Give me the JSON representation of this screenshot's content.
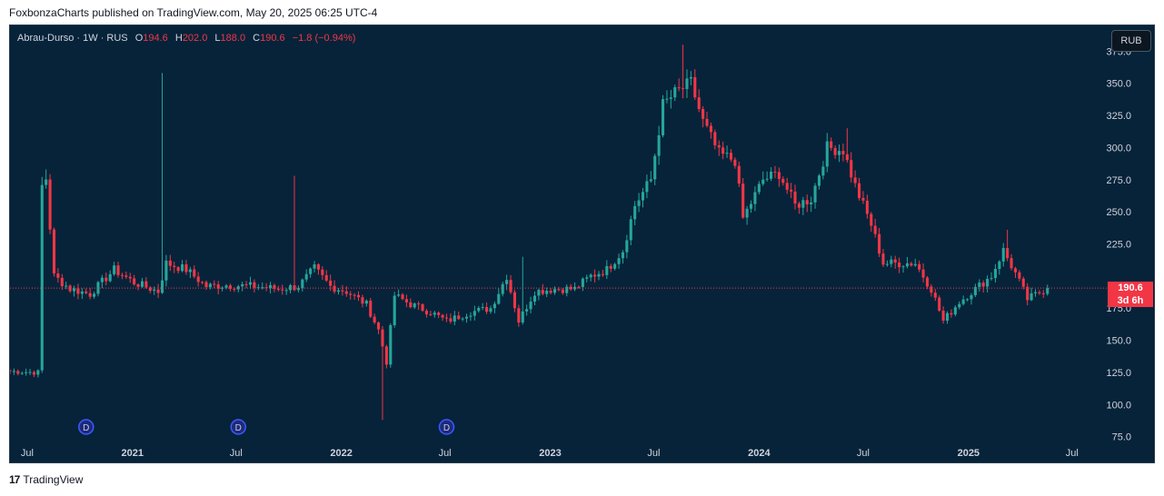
{
  "header": {
    "text": "FoxbonzaCharts published on TradingView.com, May 20, 2025 06:25 UTC-4"
  },
  "legend": {
    "symbol": "Abrau-Durso · 1W · RUS",
    "o_label": "O",
    "o_value": "194.6",
    "h_label": "H",
    "h_value": "202.0",
    "l_label": "L",
    "l_value": "188.0",
    "c_label": "C",
    "c_value": "190.6",
    "change": "−1.8 (−0.94%)"
  },
  "currency_button": "RUB",
  "price_tag": {
    "price": "190.6",
    "countdown": "3d 6h"
  },
  "dividend_marker_label": "D",
  "footer": {
    "logo": "17",
    "brand": "TradingView"
  },
  "colors": {
    "background": "#06233a",
    "up": "#26a69a",
    "down": "#f23645",
    "text": "#d1d4dc"
  },
  "chart_data": {
    "type": "candlestick",
    "symbol": "Abrau-Durso",
    "interval": "1W",
    "currency": "RUB",
    "last_price": 190.6,
    "y_ticks": [
      75,
      100,
      125,
      150,
      175,
      200,
      225,
      250,
      275,
      300,
      325,
      350,
      375
    ],
    "y_tick_labels": [
      "75.0",
      "100.0",
      "125.0",
      "150.0",
      "175.0",
      "200.0",
      "225.0",
      "250.0",
      "275.0",
      "300.0",
      "325.0",
      "350.0",
      "375.0"
    ],
    "ylim": [
      55,
      395
    ],
    "xlim": [
      "2020-06-01",
      "2025-08-10"
    ],
    "x_ticks": [
      {
        "date": "2020-07-01",
        "label": "Jul",
        "bold": false
      },
      {
        "date": "2021-01-01",
        "label": "2021",
        "bold": true
      },
      {
        "date": "2021-07-01",
        "label": "Jul",
        "bold": false
      },
      {
        "date": "2022-01-01",
        "label": "2022",
        "bold": true
      },
      {
        "date": "2022-07-01",
        "label": "Jul",
        "bold": false
      },
      {
        "date": "2023-01-01",
        "label": "2023",
        "bold": true
      },
      {
        "date": "2023-07-01",
        "label": "Jul",
        "bold": false
      },
      {
        "date": "2024-01-01",
        "label": "2024",
        "bold": true
      },
      {
        "date": "2024-07-01",
        "label": "Jul",
        "bold": false
      },
      {
        "date": "2025-01-01",
        "label": "2025",
        "bold": true
      },
      {
        "date": "2025-07-01",
        "label": "Jul",
        "bold": false
      }
    ],
    "dividends": [
      "2020-10-12",
      "2021-07-05",
      "2022-07-04"
    ],
    "anchors": [
      [
        "2020-06-01",
        126
      ],
      [
        "2020-07-20",
        125
      ],
      [
        "2020-07-27",
        270
      ],
      [
        "2020-08-03",
        276
      ],
      [
        "2020-08-17",
        200
      ],
      [
        "2020-09-14",
        190
      ],
      [
        "2020-10-19",
        186
      ],
      [
        "2020-11-30",
        205
      ],
      [
        "2021-01-04",
        195
      ],
      [
        "2021-02-15",
        188
      ],
      [
        "2021-03-01",
        210
      ],
      [
        "2021-04-05",
        205
      ],
      [
        "2021-05-10",
        192
      ],
      [
        "2021-06-14",
        193
      ],
      [
        "2021-08-02",
        192
      ],
      [
        "2021-09-13",
        190
      ],
      [
        "2021-10-18",
        192
      ],
      [
        "2021-11-15",
        206
      ],
      [
        "2021-12-13",
        192
      ],
      [
        "2022-01-10",
        188
      ],
      [
        "2022-02-14",
        178
      ],
      [
        "2022-03-07",
        158
      ],
      [
        "2022-03-21",
        133
      ],
      [
        "2022-04-04",
        185
      ],
      [
        "2022-05-02",
        178
      ],
      [
        "2022-06-06",
        172
      ],
      [
        "2022-07-04",
        165
      ],
      [
        "2022-08-15",
        172
      ],
      [
        "2022-09-19",
        175
      ],
      [
        "2022-10-17",
        200
      ],
      [
        "2022-11-07",
        165
      ],
      [
        "2022-12-05",
        188
      ],
      [
        "2023-01-09",
        190
      ],
      [
        "2023-02-13",
        190
      ],
      [
        "2023-03-13",
        200
      ],
      [
        "2023-04-10",
        205
      ],
      [
        "2023-05-08",
        220
      ],
      [
        "2023-05-29",
        255
      ],
      [
        "2023-06-26",
        275
      ],
      [
        "2023-07-17",
        333
      ],
      [
        "2023-08-07",
        342
      ],
      [
        "2023-09-04",
        350
      ],
      [
        "2023-09-25",
        320
      ],
      [
        "2023-10-23",
        295
      ],
      [
        "2023-11-20",
        290
      ],
      [
        "2023-12-04",
        245
      ],
      [
        "2024-01-08",
        275
      ],
      [
        "2024-02-05",
        280
      ],
      [
        "2024-03-04",
        255
      ],
      [
        "2024-04-01",
        260
      ],
      [
        "2024-04-29",
        300
      ],
      [
        "2024-05-27",
        298
      ],
      [
        "2024-06-17",
        270
      ],
      [
        "2024-07-15",
        240
      ],
      [
        "2024-08-05",
        210
      ],
      [
        "2024-09-02",
        210
      ],
      [
        "2024-09-30",
        210
      ],
      [
        "2024-10-28",
        190
      ],
      [
        "2024-11-18",
        165
      ],
      [
        "2024-12-16",
        180
      ],
      [
        "2025-01-13",
        190
      ],
      [
        "2025-02-10",
        200
      ],
      [
        "2025-03-03",
        220
      ],
      [
        "2025-03-24",
        202
      ],
      [
        "2025-04-14",
        182
      ],
      [
        "2025-05-19",
        190.6
      ]
    ],
    "spikes": [
      [
        "2020-08-03",
        283,
        null
      ],
      [
        "2021-02-22",
        358,
        null
      ],
      [
        "2021-10-11",
        278,
        null
      ],
      [
        "2022-03-14",
        null,
        88
      ],
      [
        "2022-11-14",
        215,
        null
      ],
      [
        "2023-08-21",
        380,
        null
      ],
      [
        "2024-06-03",
        315,
        null
      ],
      [
        "2025-03-10",
        236,
        null
      ]
    ]
  }
}
